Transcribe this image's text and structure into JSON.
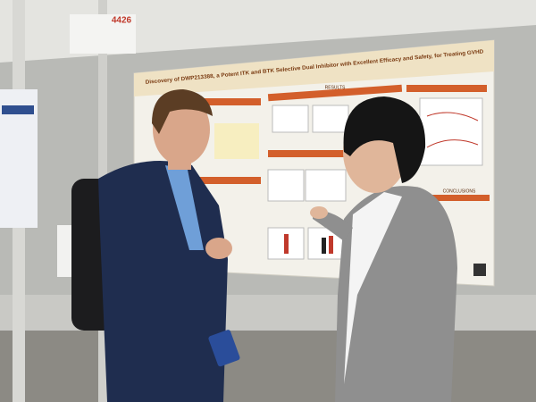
{
  "booth_number": "4426",
  "poster": {
    "title": "Discovery of DWP213388, a Potent ITK and BTK Selective Dual Inhibitor with Excellent Efficacy and Safety, for Treating GVHD",
    "sections": [
      "RESULTS",
      "CONCLUSIONS"
    ]
  }
}
